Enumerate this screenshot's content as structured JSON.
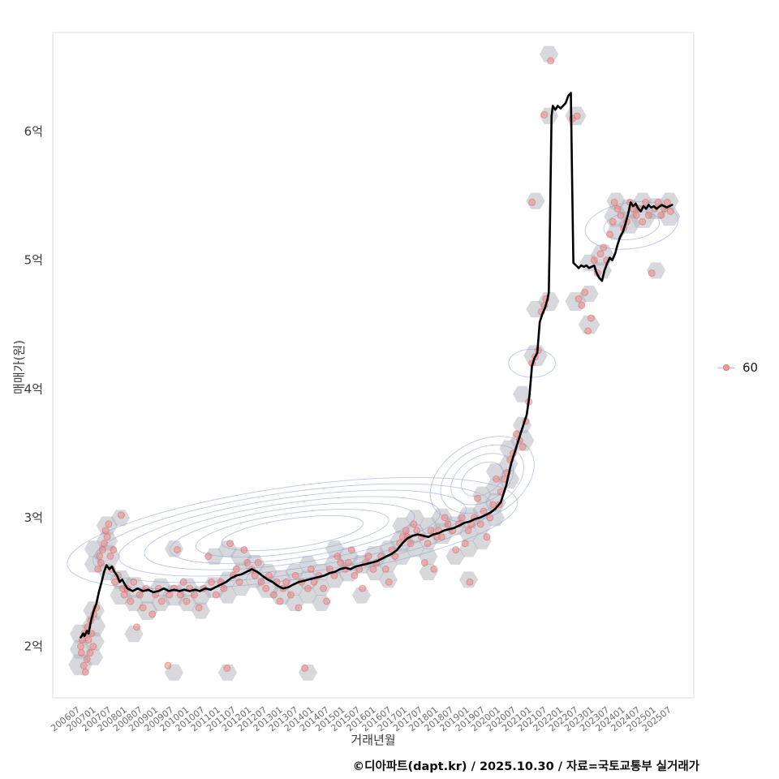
{
  "footer": {
    "credit": "©디아파트(dapt.kr) / 2025.10.30 / 자료=국토교통부 실거래가"
  },
  "chart_data": {
    "type": "scatter",
    "title": "",
    "xlabel": "거래년월",
    "ylabel": "매매가(원)",
    "legend": {
      "label": "60",
      "marker_color": "#f08080"
    },
    "grid": false,
    "ylim": [
      1.6,
      6.77
    ],
    "y_ticks": [
      "2억",
      "3억",
      "4억",
      "5억",
      "6억"
    ],
    "y_tick_values": [
      2,
      3,
      4,
      5,
      6
    ],
    "x_ticks": [
      "200607",
      "200701",
      "200707",
      "200801",
      "200807",
      "200901",
      "200907",
      "201001",
      "201007",
      "201101",
      "201107",
      "201201",
      "201207",
      "201301",
      "201307",
      "201401",
      "201407",
      "201501",
      "201507",
      "201601",
      "201607",
      "201701",
      "201707",
      "201801",
      "201807",
      "201901",
      "201907",
      "202001",
      "202007",
      "202101",
      "202107",
      "202201",
      "202207",
      "202301",
      "202307",
      "202401",
      "202407",
      "202501",
      "202507"
    ],
    "trend": [
      [
        2006.5,
        2.07
      ],
      [
        2006.58,
        2.1
      ],
      [
        2006.62,
        2.08
      ],
      [
        2006.7,
        2.12
      ],
      [
        2006.75,
        2.1
      ],
      [
        2006.83,
        2.2
      ],
      [
        2006.92,
        2.28
      ],
      [
        2007.0,
        2.33
      ],
      [
        2007.08,
        2.42
      ],
      [
        2007.17,
        2.5
      ],
      [
        2007.25,
        2.58
      ],
      [
        2007.33,
        2.63
      ],
      [
        2007.42,
        2.6
      ],
      [
        2007.5,
        2.62
      ],
      [
        2007.58,
        2.58
      ],
      [
        2007.67,
        2.55
      ],
      [
        2007.75,
        2.5
      ],
      [
        2007.83,
        2.52
      ],
      [
        2007.92,
        2.48
      ],
      [
        2008.0,
        2.45
      ],
      [
        2008.17,
        2.43
      ],
      [
        2008.33,
        2.45
      ],
      [
        2008.5,
        2.43
      ],
      [
        2008.67,
        2.44
      ],
      [
        2008.83,
        2.42
      ],
      [
        2009.0,
        2.43
      ],
      [
        2009.17,
        2.45
      ],
      [
        2009.33,
        2.43
      ],
      [
        2009.5,
        2.44
      ],
      [
        2009.67,
        2.43
      ],
      [
        2009.83,
        2.44
      ],
      [
        2010.0,
        2.43
      ],
      [
        2010.17,
        2.44
      ],
      [
        2010.33,
        2.43
      ],
      [
        2010.5,
        2.45
      ],
      [
        2010.67,
        2.44
      ],
      [
        2010.83,
        2.46
      ],
      [
        2011.0,
        2.48
      ],
      [
        2011.17,
        2.5
      ],
      [
        2011.33,
        2.53
      ],
      [
        2011.5,
        2.55
      ],
      [
        2011.67,
        2.56
      ],
      [
        2011.83,
        2.58
      ],
      [
        2012.0,
        2.6
      ],
      [
        2012.17,
        2.58
      ],
      [
        2012.33,
        2.55
      ],
      [
        2012.5,
        2.52
      ],
      [
        2012.67,
        2.5
      ],
      [
        2012.83,
        2.47
      ],
      [
        2013.0,
        2.45
      ],
      [
        2013.17,
        2.46
      ],
      [
        2013.33,
        2.48
      ],
      [
        2013.5,
        2.5
      ],
      [
        2013.67,
        2.51
      ],
      [
        2013.83,
        2.52
      ],
      [
        2014.0,
        2.53
      ],
      [
        2014.17,
        2.54
      ],
      [
        2014.33,
        2.55
      ],
      [
        2014.5,
        2.57
      ],
      [
        2014.67,
        2.58
      ],
      [
        2014.83,
        2.6
      ],
      [
        2015.0,
        2.61
      ],
      [
        2015.17,
        2.6
      ],
      [
        2015.33,
        2.62
      ],
      [
        2015.5,
        2.63
      ],
      [
        2015.67,
        2.64
      ],
      [
        2015.83,
        2.65
      ],
      [
        2016.0,
        2.66
      ],
      [
        2016.17,
        2.68
      ],
      [
        2016.33,
        2.7
      ],
      [
        2016.5,
        2.72
      ],
      [
        2016.67,
        2.75
      ],
      [
        2016.83,
        2.8
      ],
      [
        2017.0,
        2.84
      ],
      [
        2017.17,
        2.86
      ],
      [
        2017.33,
        2.87
      ],
      [
        2017.5,
        2.86
      ],
      [
        2017.67,
        2.85
      ],
      [
        2017.83,
        2.87
      ],
      [
        2018.0,
        2.88
      ],
      [
        2018.17,
        2.9
      ],
      [
        2018.33,
        2.91
      ],
      [
        2018.5,
        2.92
      ],
      [
        2018.67,
        2.94
      ],
      [
        2018.83,
        2.96
      ],
      [
        2019.0,
        2.97
      ],
      [
        2019.17,
        2.99
      ],
      [
        2019.33,
        3.0
      ],
      [
        2019.5,
        3.02
      ],
      [
        2019.67,
        3.04
      ],
      [
        2019.83,
        3.07
      ],
      [
        2020.0,
        3.12
      ],
      [
        2020.17,
        3.25
      ],
      [
        2020.33,
        3.42
      ],
      [
        2020.5,
        3.55
      ],
      [
        2020.67,
        3.68
      ],
      [
        2020.83,
        3.8
      ],
      [
        2020.92,
        3.95
      ],
      [
        2021.0,
        4.18
      ],
      [
        2021.08,
        4.24
      ],
      [
        2021.17,
        4.28
      ],
      [
        2021.25,
        4.52
      ],
      [
        2021.33,
        4.58
      ],
      [
        2021.42,
        4.63
      ],
      [
        2021.5,
        4.7
      ],
      [
        2021.54,
        4.75
      ],
      [
        2021.58,
        5.3
      ],
      [
        2021.63,
        6.12
      ],
      [
        2021.67,
        6.2
      ],
      [
        2021.75,
        6.17
      ],
      [
        2021.83,
        6.2
      ],
      [
        2021.92,
        6.18
      ],
      [
        2022.0,
        6.2
      ],
      [
        2022.08,
        6.22
      ],
      [
        2022.17,
        6.28
      ],
      [
        2022.25,
        6.3
      ],
      [
        2022.29,
        5.6
      ],
      [
        2022.33,
        4.98
      ],
      [
        2022.42,
        4.96
      ],
      [
        2022.5,
        4.94
      ],
      [
        2022.58,
        4.96
      ],
      [
        2022.67,
        4.95
      ],
      [
        2022.75,
        4.96
      ],
      [
        2022.83,
        4.94
      ],
      [
        2022.92,
        4.95
      ],
      [
        2023.0,
        4.96
      ],
      [
        2023.08,
        4.9
      ],
      [
        2023.17,
        4.86
      ],
      [
        2023.25,
        4.84
      ],
      [
        2023.33,
        4.92
      ],
      [
        2023.42,
        4.98
      ],
      [
        2023.5,
        5.02
      ],
      [
        2023.58,
        5.0
      ],
      [
        2023.67,
        5.05
      ],
      [
        2023.75,
        5.12
      ],
      [
        2023.83,
        5.18
      ],
      [
        2023.92,
        5.22
      ],
      [
        2024.0,
        5.28
      ],
      [
        2024.08,
        5.35
      ],
      [
        2024.17,
        5.45
      ],
      [
        2024.25,
        5.42
      ],
      [
        2024.33,
        5.44
      ],
      [
        2024.42,
        5.4
      ],
      [
        2024.5,
        5.38
      ],
      [
        2024.58,
        5.42
      ],
      [
        2024.67,
        5.4
      ],
      [
        2024.75,
        5.43
      ],
      [
        2024.83,
        5.41
      ],
      [
        2024.92,
        5.42
      ],
      [
        2025.0,
        5.4
      ],
      [
        2025.17,
        5.43
      ],
      [
        2025.33,
        5.41
      ],
      [
        2025.5,
        5.43
      ]
    ],
    "points": [
      [
        2006.5,
        2.0
      ],
      [
        2006.52,
        1.95
      ],
      [
        2006.55,
        2.05
      ],
      [
        2006.6,
        1.85
      ],
      [
        2006.62,
        2.1
      ],
      [
        2006.65,
        1.8
      ],
      [
        2006.7,
        1.9
      ],
      [
        2006.72,
        2.15
      ],
      [
        2006.75,
        2.05
      ],
      [
        2006.8,
        1.95
      ],
      [
        2006.82,
        2.2
      ],
      [
        2006.85,
        2.1
      ],
      [
        2006.9,
        2.0
      ],
      [
        2006.92,
        2.25
      ],
      [
        2007.0,
        2.3
      ],
      [
        2007.05,
        2.6
      ],
      [
        2007.1,
        2.7
      ],
      [
        2007.15,
        2.65
      ],
      [
        2007.2,
        2.75
      ],
      [
        2007.25,
        2.8
      ],
      [
        2007.3,
        2.9
      ],
      [
        2007.35,
        2.85
      ],
      [
        2007.4,
        2.95
      ],
      [
        2007.45,
        2.7
      ],
      [
        2007.5,
        2.6
      ],
      [
        2007.55,
        2.75
      ],
      [
        2007.6,
        2.5
      ],
      [
        2007.7,
        2.55
      ],
      [
        2007.8,
        3.02
      ],
      [
        2007.85,
        2.45
      ],
      [
        2007.9,
        2.4
      ],
      [
        2008.0,
        2.45
      ],
      [
        2008.1,
        2.35
      ],
      [
        2008.2,
        2.5
      ],
      [
        2008.3,
        2.15
      ],
      [
        2008.4,
        2.4
      ],
      [
        2008.5,
        2.3
      ],
      [
        2008.6,
        2.45
      ],
      [
        2008.8,
        2.25
      ],
      [
        2008.9,
        2.4
      ],
      [
        2009.0,
        2.45
      ],
      [
        2009.1,
        2.35
      ],
      [
        2009.3,
        1.85
      ],
      [
        2009.35,
        2.4
      ],
      [
        2009.5,
        2.45
      ],
      [
        2009.6,
        2.75
      ],
      [
        2009.7,
        2.4
      ],
      [
        2009.8,
        2.5
      ],
      [
        2009.9,
        2.35
      ],
      [
        2010.0,
        2.45
      ],
      [
        2010.15,
        2.4
      ],
      [
        2010.3,
        2.3
      ],
      [
        2010.45,
        2.45
      ],
      [
        2010.6,
        2.7
      ],
      [
        2010.7,
        2.5
      ],
      [
        2010.85,
        2.4
      ],
      [
        2011.0,
        2.5
      ],
      [
        2011.1,
        2.45
      ],
      [
        2011.2,
        1.83
      ],
      [
        2011.3,
        2.8
      ],
      [
        2011.4,
        2.55
      ],
      [
        2011.5,
        2.6
      ],
      [
        2011.6,
        2.5
      ],
      [
        2011.75,
        2.75
      ],
      [
        2011.85,
        2.65
      ],
      [
        2012.0,
        2.6
      ],
      [
        2012.1,
        2.55
      ],
      [
        2012.2,
        2.65
      ],
      [
        2012.3,
        2.5
      ],
      [
        2012.45,
        2.45
      ],
      [
        2012.55,
        2.55
      ],
      [
        2012.7,
        2.4
      ],
      [
        2012.8,
        2.5
      ],
      [
        2012.9,
        2.35
      ],
      [
        2013.0,
        2.45
      ],
      [
        2013.1,
        2.5
      ],
      [
        2013.25,
        2.4
      ],
      [
        2013.4,
        2.55
      ],
      [
        2013.5,
        2.3
      ],
      [
        2013.6,
        2.5
      ],
      [
        2013.7,
        1.83
      ],
      [
        2013.8,
        2.45
      ],
      [
        2013.9,
        2.6
      ],
      [
        2014.0,
        2.5
      ],
      [
        2014.15,
        2.55
      ],
      [
        2014.3,
        2.45
      ],
      [
        2014.4,
        2.35
      ],
      [
        2014.5,
        2.6
      ],
      [
        2014.65,
        2.55
      ],
      [
        2014.75,
        2.7
      ],
      [
        2014.85,
        2.65
      ],
      [
        2015.0,
        2.6
      ],
      [
        2015.1,
        2.65
      ],
      [
        2015.2,
        2.75
      ],
      [
        2015.3,
        2.55
      ],
      [
        2015.45,
        2.6
      ],
      [
        2015.55,
        2.45
      ],
      [
        2015.65,
        2.65
      ],
      [
        2015.75,
        2.7
      ],
      [
        2015.9,
        2.6
      ],
      [
        2016.0,
        2.65
      ],
      [
        2016.15,
        2.7
      ],
      [
        2016.3,
        2.6
      ],
      [
        2016.4,
        2.5
      ],
      [
        2016.5,
        2.75
      ],
      [
        2016.6,
        2.7
      ],
      [
        2016.75,
        2.8
      ],
      [
        2016.85,
        2.85
      ],
      [
        2016.95,
        2.9
      ],
      [
        2017.0,
        2.85
      ],
      [
        2017.1,
        2.8
      ],
      [
        2017.2,
        2.95
      ],
      [
        2017.3,
        2.9
      ],
      [
        2017.45,
        2.85
      ],
      [
        2017.55,
        2.65
      ],
      [
        2017.65,
        2.8
      ],
      [
        2017.75,
        2.9
      ],
      [
        2017.85,
        2.6
      ],
      [
        2017.95,
        2.85
      ],
      [
        2018.0,
        2.9
      ],
      [
        2018.1,
        2.85
      ],
      [
        2018.2,
        3.0
      ],
      [
        2018.3,
        2.95
      ],
      [
        2018.45,
        2.9
      ],
      [
        2018.55,
        2.75
      ],
      [
        2018.65,
        2.95
      ],
      [
        2018.75,
        3.0
      ],
      [
        2018.85,
        2.8
      ],
      [
        2018.95,
        2.9
      ],
      [
        2019.0,
        2.5
      ],
      [
        2019.05,
        2.95
      ],
      [
        2019.15,
        3.0
      ],
      [
        2019.25,
        3.15
      ],
      [
        2019.35,
        2.95
      ],
      [
        2019.45,
        3.05
      ],
      [
        2019.55,
        2.85
      ],
      [
        2019.65,
        3.0
      ],
      [
        2019.75,
        3.1
      ],
      [
        2019.85,
        3.3
      ],
      [
        2019.95,
        3.1
      ],
      [
        2020.0,
        3.2
      ],
      [
        2020.1,
        3.3
      ],
      [
        2020.2,
        3.35
      ],
      [
        2020.3,
        3.45
      ],
      [
        2020.4,
        3.5
      ],
      [
        2020.5,
        3.65
      ],
      [
        2020.6,
        3.6
      ],
      [
        2020.7,
        3.55
      ],
      [
        2020.8,
        3.75
      ],
      [
        2020.9,
        3.9
      ],
      [
        2021.0,
        4.2
      ],
      [
        2021.0,
        5.45
      ],
      [
        2021.1,
        4.25
      ],
      [
        2021.2,
        4.3
      ],
      [
        2021.3,
        4.6
      ],
      [
        2021.4,
        4.65
      ],
      [
        2021.45,
        4.7
      ],
      [
        2021.4,
        6.13
      ],
      [
        2021.6,
        6.55
      ],
      [
        2022.3,
        6.1
      ],
      [
        2022.45,
        6.12
      ],
      [
        2022.5,
        4.7
      ],
      [
        2022.6,
        4.65
      ],
      [
        2022.7,
        4.75
      ],
      [
        2022.8,
        4.45
      ],
      [
        2022.9,
        4.55
      ],
      [
        2023.0,
        5.0
      ],
      [
        2023.1,
        4.9
      ],
      [
        2023.2,
        5.05
      ],
      [
        2023.3,
        5.1
      ],
      [
        2023.4,
        5.0
      ],
      [
        2023.5,
        5.2
      ],
      [
        2023.6,
        5.3
      ],
      [
        2023.65,
        5.45
      ],
      [
        2023.75,
        5.4
      ],
      [
        2023.85,
        5.35
      ],
      [
        2023.95,
        5.25
      ],
      [
        2024.05,
        5.3
      ],
      [
        2024.15,
        5.45
      ],
      [
        2024.25,
        5.4
      ],
      [
        2024.35,
        5.35
      ],
      [
        2024.45,
        5.4
      ],
      [
        2024.55,
        5.3
      ],
      [
        2024.65,
        5.45
      ],
      [
        2024.75,
        5.35
      ],
      [
        2024.85,
        4.9
      ],
      [
        2024.95,
        5.4
      ],
      [
        2025.05,
        5.45
      ],
      [
        2025.15,
        5.35
      ],
      [
        2025.25,
        5.4
      ],
      [
        2025.35,
        5.45
      ],
      [
        2025.45,
        5.38
      ]
    ],
    "density_contours": [
      {
        "cx": 2013.3,
        "cy": 2.88,
        "rx": 7.3,
        "ry": 0.36,
        "rot": -8,
        "levels": 7
      },
      {
        "cx": 2019.4,
        "cy": 3.3,
        "rx": 1.8,
        "ry": 0.29,
        "rot": -30,
        "levels": 4
      },
      {
        "cx": 2021.0,
        "cy": 4.2,
        "rx": 0.75,
        "ry": 0.11,
        "rot": 0,
        "levels": 1
      },
      {
        "cx": 2024.2,
        "cy": 5.27,
        "rx": 1.5,
        "ry": 0.18,
        "rot": -8,
        "levels": 2
      }
    ]
  }
}
